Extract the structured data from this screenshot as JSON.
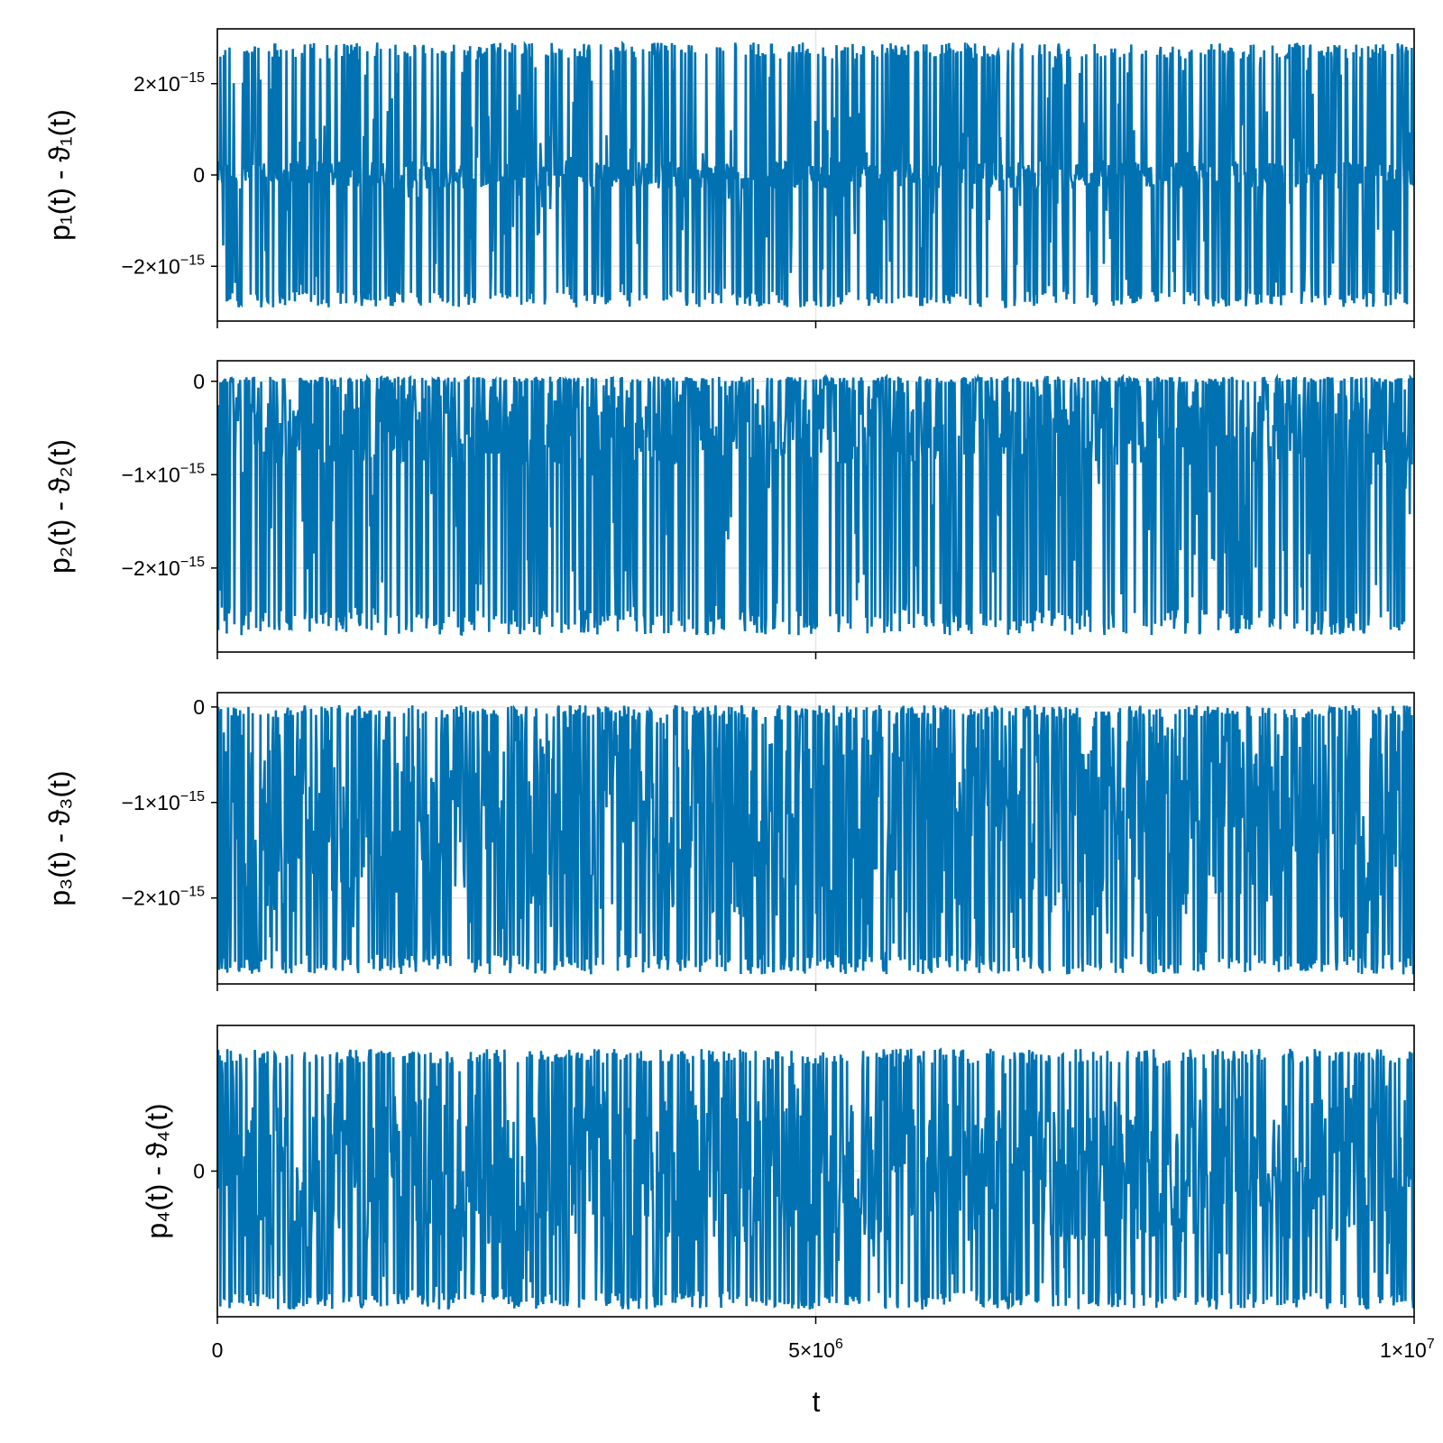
{
  "figure": {
    "xlabel": "t",
    "xticks": [
      {
        "value": 0,
        "label": "0",
        "sup": ""
      },
      {
        "value": 5000000,
        "label": "5×10",
        "sup": "6"
      },
      {
        "value": 10000000,
        "label": "1×10",
        "sup": "7"
      }
    ]
  },
  "chart_data": [
    {
      "type": "line",
      "ylabel": "p₁(t) - ϑ₁(t)",
      "xlim": [
        0,
        10000000
      ],
      "ylim": [
        -3.2e-15,
        3.2e-15
      ],
      "grid": true,
      "yticks": [
        {
          "value": 2e-15,
          "label": "2×10",
          "sup": "−15"
        },
        {
          "value": 0,
          "label": "0",
          "sup": ""
        },
        {
          "value": -2e-15,
          "label": "−2×10",
          "sup": "−15"
        }
      ],
      "series": [
        {
          "color": "#0072b2",
          "envelope": {
            "upper": 2.9e-15,
            "lower": -2.9e-15,
            "baseline": 0,
            "core_half_width": 3e-16
          }
        }
      ]
    },
    {
      "type": "line",
      "ylabel": "p₂(t) - ϑ₂(t)",
      "xlim": [
        0,
        10000000
      ],
      "ylim": [
        -2.9e-15,
        2.2e-16
      ],
      "grid": true,
      "yticks": [
        {
          "value": 0,
          "label": "0",
          "sup": ""
        },
        {
          "value": -1e-15,
          "label": "−1×10",
          "sup": "−15"
        },
        {
          "value": -2e-15,
          "label": "−2×10",
          "sup": "−15"
        }
      ],
      "series": [
        {
          "color": "#0072b2",
          "envelope": {
            "upper": 5e-17,
            "lower": -2.72e-15,
            "baseline": -4.5e-16,
            "core_half_width": 4.5e-16
          }
        }
      ]
    },
    {
      "type": "line",
      "ylabel": "p₃(t) - ϑ₃(t)",
      "xlim": [
        0,
        10000000
      ],
      "ylim": [
        -2.9e-15,
        1.5e-16
      ],
      "grid": true,
      "yticks": [
        {
          "value": 0,
          "label": "0",
          "sup": ""
        },
        {
          "value": -1e-15,
          "label": "−1×10",
          "sup": "−15"
        },
        {
          "value": -2e-15,
          "label": "−2×10",
          "sup": "−15"
        }
      ],
      "series": [
        {
          "color": "#0072b2",
          "envelope": {
            "upper": 2e-17,
            "lower": -2.8e-15,
            "baseline": -1.1e-15,
            "core_half_width": 1.1e-15
          }
        }
      ]
    },
    {
      "type": "line",
      "ylabel": "p₄(t) - ϑ₄(t)",
      "xlim": [
        0,
        10000000
      ],
      "ylim": [
        -1.0,
        1.0
      ],
      "grid": true,
      "yticks": [
        {
          "value": 0,
          "label": "0",
          "sup": ""
        }
      ],
      "series": [
        {
          "color": "#0072b2",
          "envelope": {
            "upper": 0.84,
            "lower": -0.95,
            "baseline": 0,
            "core_half_width": 0.5
          }
        }
      ]
    }
  ]
}
